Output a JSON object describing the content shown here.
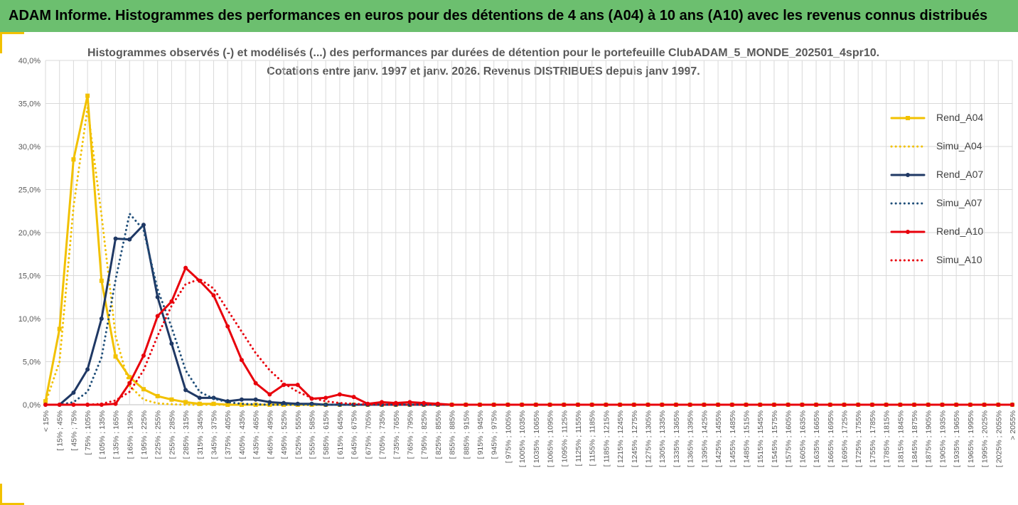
{
  "banner": {
    "title": "ADAM Informe. Histogrammes des performances en euros pour des détentions de 4 ans (A04) à 10 ans (A10) avec les revenus connus distribués"
  },
  "colors": {
    "banner_bg": "#6cbf6f",
    "gold": "#f2c100",
    "navy": "#1f3864",
    "red": "#e8000b",
    "grid": "#d9d9d9",
    "text": "#595959"
  },
  "chart_data": {
    "type": "line",
    "title": "Histogrammes observés (-) et modélisés (...) des performances par durées de détention pour le portefeuille ClubADAM_5_MONDE_202501_4spr10.",
    "subtitle": "Cotations entre janv. 1997 et janv. 2026. Revenus DISTRIBUES depuis janv 1997.",
    "ylim": [
      0,
      40
    ],
    "y_ticks": [
      "0,0%",
      "5,0%",
      "10,0%",
      "15,0%",
      "20,0%",
      "25,0%",
      "30,0%",
      "35,0%",
      "40,0%"
    ],
    "grid": true,
    "legend_position": "right",
    "categories": [
      "< 15%",
      "[ 15% ; 45%",
      "[ 45% ; 75%",
      "[ 75% ; 105%",
      "[ 105% ; 135%",
      "[ 135% ; 165%",
      "[ 165% ; 195%",
      "[ 195% ; 225%",
      "[ 225% ; 255%",
      "[ 255% ; 285%",
      "[ 285% ; 315%",
      "[ 315% ; 345%",
      "[ 345% ; 375%",
      "[ 375% ; 405%",
      "[ 405% ; 435%",
      "[ 435% ; 465%",
      "[ 465% ; 495%",
      "[ 495% ; 525%",
      "[ 525% ; 555%",
      "[ 555% ; 585%",
      "[ 585% ; 615%",
      "[ 615% ; 645%",
      "[ 645% ; 675%",
      "[ 675% ; 705%",
      "[ 705% ; 735%",
      "[ 735% ; 765%",
      "[ 765% ; 795%",
      "[ 795% ; 825%",
      "[ 825% ; 855%",
      "[ 855% ; 885%",
      "[ 885% ; 915%",
      "[ 915% ; 945%",
      "[ 945% ; 975%",
      "[ 975% ; 1005%",
      "[ 1005% ; 1035%",
      "[ 1035% ; 1065%",
      "[ 1065% ; 1095%",
      "[ 1095% ; 1125%",
      "[ 1125% ; 1155%",
      "[ 1155% ; 1185%",
      "[ 1185% ; 1215%",
      "[ 1215% ; 1245%",
      "[ 1245% ; 1275%",
      "[ 1275% ; 1305%",
      "[ 1305% ; 1335%",
      "[ 1335% ; 1365%",
      "[ 1365% ; 1395%",
      "[ 1395% ; 1425%",
      "[ 1425% ; 1455%",
      "[ 1455% ; 1485%",
      "[ 1485% ; 1515%",
      "[ 1515% ; 1545%",
      "[ 1545% ; 1575%",
      "[ 1575% ; 1605%",
      "[ 1605% ; 1635%",
      "[ 1635% ; 1665%",
      "[ 1665% ; 1695%",
      "[ 1695% ; 1725%",
      "[ 1725% ; 1755%",
      "[ 1755% ; 1785%",
      "[ 1785% ; 1815%",
      "[ 1815% ; 1845%",
      "[ 1845% ; 1875%",
      "[ 1875% ; 1905%",
      "[ 1905% ; 1935%",
      "[ 1935% ; 1965%",
      "[ 1965% ; 1995%",
      "[ 1995% ; 2025%",
      "[ 2025% ; 2055%",
      "> 2055%"
    ],
    "series": [
      {
        "name": "Rend_A04",
        "color": "#f2c100",
        "style": "solid",
        "marker": "square",
        "values": [
          0.4,
          8.8,
          28.5,
          35.9,
          14.4,
          5.6,
          3.2,
          1.8,
          1.0,
          0.6,
          0.3,
          0.1,
          0.1,
          0,
          0,
          0,
          0,
          0,
          0,
          0,
          0,
          0,
          0,
          0,
          0,
          0,
          0,
          0,
          0,
          0,
          0,
          0,
          0,
          0,
          0,
          0,
          0,
          0,
          0,
          0,
          0,
          0,
          0,
          0,
          0,
          0,
          0,
          0,
          0,
          0,
          0,
          0,
          0,
          0,
          0,
          0,
          0,
          0,
          0,
          0,
          0,
          0,
          0,
          0,
          0,
          0,
          0,
          0,
          0,
          0
        ]
      },
      {
        "name": "Simu_A04",
        "color": "#f2c100",
        "style": "dotted",
        "marker": "none",
        "values": [
          0.2,
          5.0,
          23.0,
          34.5,
          22.0,
          8.0,
          2.2,
          0.6,
          0.15,
          0.05,
          0,
          0,
          0,
          0,
          0,
          0,
          0,
          0,
          0,
          0,
          0,
          0,
          0,
          0,
          0,
          0,
          0,
          0,
          0,
          0,
          0,
          0,
          0,
          0,
          0,
          0,
          0,
          0,
          0,
          0,
          0,
          0,
          0,
          0,
          0,
          0,
          0,
          0,
          0,
          0,
          0,
          0,
          0,
          0,
          0,
          0,
          0,
          0,
          0,
          0,
          0,
          0,
          0,
          0,
          0,
          0,
          0,
          0,
          0,
          0
        ]
      },
      {
        "name": "Rend_A07",
        "color": "#1f3864",
        "style": "solid",
        "marker": "circle",
        "values": [
          0,
          0,
          1.4,
          4.1,
          10.0,
          19.3,
          19.2,
          20.9,
          12.5,
          7.1,
          1.7,
          0.8,
          0.8,
          0.4,
          0.6,
          0.6,
          0.3,
          0.2,
          0.1,
          0.1,
          0,
          0,
          0,
          0,
          0,
          0,
          0,
          0,
          0,
          0,
          0,
          0,
          0,
          0,
          0,
          0,
          0,
          0,
          0,
          0,
          0,
          0,
          0,
          0,
          0,
          0,
          0,
          0,
          0,
          0,
          0,
          0,
          0,
          0,
          0,
          0,
          0,
          0,
          0,
          0,
          0,
          0,
          0,
          0,
          0,
          0,
          0,
          0,
          0,
          0
        ]
      },
      {
        "name": "Simu_A07",
        "color": "#1f4e79",
        "style": "dotted",
        "marker": "none",
        "values": [
          0,
          0,
          0.3,
          1.5,
          5.5,
          14.5,
          22.2,
          20.3,
          13.4,
          9.0,
          4.0,
          1.5,
          0.7,
          0.3,
          0.1,
          0.05,
          0,
          0,
          0,
          0,
          0,
          0,
          0,
          0,
          0,
          0,
          0,
          0,
          0,
          0,
          0,
          0,
          0,
          0,
          0,
          0,
          0,
          0,
          0,
          0,
          0,
          0,
          0,
          0,
          0,
          0,
          0,
          0,
          0,
          0,
          0,
          0,
          0,
          0,
          0,
          0,
          0,
          0,
          0,
          0,
          0,
          0,
          0,
          0,
          0,
          0,
          0,
          0,
          0,
          0
        ]
      },
      {
        "name": "Rend_A10",
        "color": "#e8000b",
        "style": "solid",
        "marker": "circle",
        "values": [
          0,
          0,
          0,
          0,
          0,
          0.1,
          2.5,
          5.7,
          10.3,
          12.0,
          15.9,
          14.4,
          12.7,
          9.1,
          5.2,
          2.5,
          1.2,
          2.3,
          2.3,
          0.7,
          0.8,
          1.2,
          0.9,
          0.1,
          0.3,
          0.2,
          0.3,
          0.2,
          0.1,
          0,
          0,
          0,
          0,
          0,
          0,
          0,
          0,
          0,
          0,
          0,
          0,
          0,
          0,
          0,
          0,
          0,
          0,
          0,
          0,
          0,
          0,
          0,
          0,
          0,
          0,
          0,
          0,
          0,
          0,
          0,
          0,
          0,
          0,
          0,
          0,
          0,
          0,
          0,
          0,
          0
        ]
      },
      {
        "name": "Simu_A10",
        "color": "#e8000b",
        "style": "dotted",
        "marker": "none",
        "values": [
          0,
          0,
          0,
          0,
          0.1,
          0.5,
          1.5,
          4.0,
          8.0,
          11.5,
          14.0,
          14.6,
          13.5,
          11.0,
          8.5,
          6.0,
          4.0,
          2.5,
          1.5,
          0.8,
          0.4,
          0.2,
          0.1,
          0.05,
          0,
          0,
          0,
          0,
          0,
          0,
          0,
          0,
          0,
          0,
          0,
          0,
          0,
          0,
          0,
          0,
          0,
          0,
          0,
          0,
          0,
          0,
          0,
          0,
          0,
          0,
          0,
          0,
          0,
          0,
          0,
          0,
          0,
          0,
          0,
          0,
          0,
          0,
          0,
          0,
          0,
          0,
          0,
          0,
          0,
          0
        ]
      }
    ]
  }
}
